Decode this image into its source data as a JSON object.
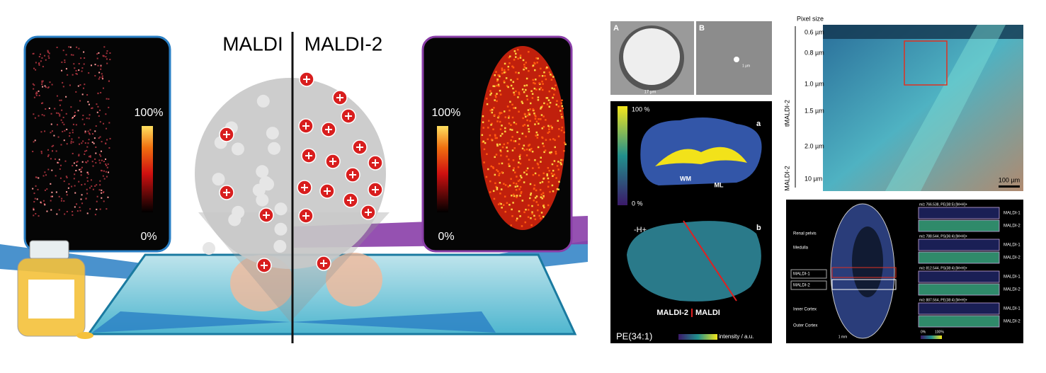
{
  "left_panel": {
    "label_left": "MALDI",
    "label_right": "MALDI-2",
    "scale_left": {
      "top": "100%",
      "bottom": "0%"
    },
    "scale_right": {
      "top": "100%",
      "bottom": "0%"
    }
  },
  "middle_panel": {
    "panel_a_label": "A",
    "panel_b_label": "B",
    "scale_a": "17 μm",
    "scale_b": "1 μm",
    "brain": {
      "label_a": "a",
      "label_b": "b",
      "scale_top": "100 %",
      "scale_bottom": "0 %",
      "wm": "WM",
      "ml": "ML",
      "ion": "-H+",
      "left_method": "MALDI-2",
      "right_method": "MALDI",
      "lipid": "PE(34:1)",
      "intensity": "intensity / a.u."
    }
  },
  "right_top": {
    "title": "Pixel size",
    "pixel_sizes": [
      "0.6 µm",
      "0.8 µm",
      "1.0 µm",
      "1.5 µm",
      "2.0 µm",
      "10 µm"
    ],
    "group_top": "tMALDI-2",
    "group_bottom": "MALDI-2",
    "scale": "100 µm"
  },
  "right_bottom": {
    "regions": [
      "Renal pelvis",
      "Medulla",
      "MALDI-1",
      "MALDI-2",
      "Inner Cortex",
      "Outer Cortex"
    ],
    "ions": [
      "m/z 766.538, PE(38:5) [M+H]+",
      "m/z 788.544, PS(36:4) [M+H]+",
      "m/z 812.544, PS(38:4) [M+H]+",
      "m/z 887.564, PE(38:4) [M+H]+"
    ],
    "row_labels": [
      "MALDI-1",
      "MALDI-2"
    ],
    "scale_low": "0%",
    "scale_high": "100%",
    "scale_bar": "1 mm"
  }
}
